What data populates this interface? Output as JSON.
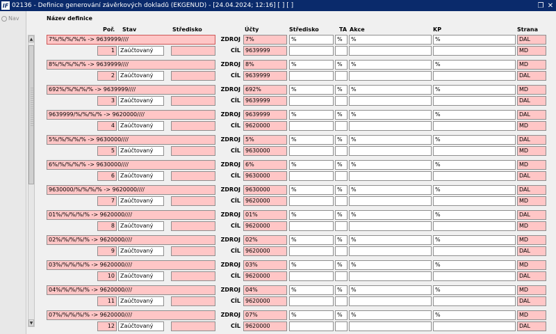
{
  "window": {
    "app_icon_text": "IF",
    "title": "02136 - Definice generování závěrkových dokladů (EKGENUD) - [24.04.2024; 12:16]  [ ]  [ ]",
    "restore_icon": "restore-icon"
  },
  "sidebar": {
    "nav_label": "Nav"
  },
  "form": {
    "section_label": "Název definice",
    "columns": {
      "por": "Poř.",
      "stav": "Stav",
      "stredisko": "Středisko",
      "ucty": "Účty",
      "stredisko2": "Středisko",
      "ta": "TA",
      "akce": "Akce",
      "kp": "KP",
      "strana": "Strana"
    },
    "labels": {
      "zdroj": "ZDROJ",
      "cil": "CÍL"
    },
    "rows": [
      {
        "name": "7%/%/%/%/% -> 9639999////",
        "por": "1",
        "stav": "Zaúčtovaný",
        "zdroj_ucty": "7%",
        "zdroj_stredisko": "%",
        "zdroj_ta": "%",
        "zdroj_akce": "%",
        "zdroj_kp": "%",
        "zdroj_strana": "DAL",
        "cil_ucty": "9639999",
        "cil_strana": "MD"
      },
      {
        "name": "8%/%/%/%/% -> 9639999////",
        "por": "2",
        "stav": "Zaúčtovaný",
        "zdroj_ucty": "8%",
        "zdroj_stredisko": "%",
        "zdroj_ta": "%",
        "zdroj_akce": "%",
        "zdroj_kp": "%",
        "zdroj_strana": "MD",
        "cil_ucty": "9639999",
        "cil_strana": "DAL"
      },
      {
        "name": "692%/%/%/%/% -> 9639999////",
        "por": "3",
        "stav": "Zaúčtovaný",
        "zdroj_ucty": "692%",
        "zdroj_stredisko": "%",
        "zdroj_ta": "%",
        "zdroj_akce": "%",
        "zdroj_kp": "%",
        "zdroj_strana": "MD",
        "cil_ucty": "9639999",
        "cil_strana": "DAL"
      },
      {
        "name": "9639999/%/%/%/% -> 9620000////",
        "por": "4",
        "stav": "Zaúčtovaný",
        "zdroj_ucty": "9639999",
        "zdroj_stredisko": "%",
        "zdroj_ta": "%",
        "zdroj_akce": "%",
        "zdroj_kp": "%",
        "zdroj_strana": "DAL",
        "cil_ucty": "9620000",
        "cil_strana": "MD"
      },
      {
        "name": "5%/%/%/%/% -> 9630000////",
        "por": "5",
        "stav": "Zaúčtovaný",
        "zdroj_ucty": "5%",
        "zdroj_stredisko": "%",
        "zdroj_ta": "%",
        "zdroj_akce": "%",
        "zdroj_kp": "%",
        "zdroj_strana": "DAL",
        "cil_ucty": "9630000",
        "cil_strana": "MD"
      },
      {
        "name": "6%/%/%/%/% -> 9630000////",
        "por": "6",
        "stav": "Zaúčtovaný",
        "zdroj_ucty": "6%",
        "zdroj_stredisko": "%",
        "zdroj_ta": "%",
        "zdroj_akce": "%",
        "zdroj_kp": "%",
        "zdroj_strana": "MD",
        "cil_ucty": "9630000",
        "cil_strana": "DAL"
      },
      {
        "name": "9630000/%/%/%/% -> 9620000////",
        "por": "7",
        "stav": "Zaúčtovaný",
        "zdroj_ucty": "9630000",
        "zdroj_stredisko": "%",
        "zdroj_ta": "%",
        "zdroj_akce": "%",
        "zdroj_kp": "%",
        "zdroj_strana": "DAL",
        "cil_ucty": "9620000",
        "cil_strana": "MD"
      },
      {
        "name": "01%/%/%/%/% -> 9620000////",
        "por": "8",
        "stav": "Zaúčtovaný",
        "zdroj_ucty": "01%",
        "zdroj_stredisko": "%",
        "zdroj_ta": "%",
        "zdroj_akce": "%",
        "zdroj_kp": "%",
        "zdroj_strana": "DAL",
        "cil_ucty": "9620000",
        "cil_strana": "MD"
      },
      {
        "name": "02%/%/%/%/% -> 9620000////",
        "por": "9",
        "stav": "Zaúčtovaný",
        "zdroj_ucty": "02%",
        "zdroj_stredisko": "%",
        "zdroj_ta": "%",
        "zdroj_akce": "%",
        "zdroj_kp": "%",
        "zdroj_strana": "MD",
        "cil_ucty": "9620000",
        "cil_strana": "DAL"
      },
      {
        "name": "03%/%/%/%/% -> 9620000////",
        "por": "10",
        "stav": "Zaúčtovaný",
        "zdroj_ucty": "03%",
        "zdroj_stredisko": "%",
        "zdroj_ta": "%",
        "zdroj_akce": "%",
        "zdroj_kp": "%",
        "zdroj_strana": "MD",
        "cil_ucty": "9620000",
        "cil_strana": "DAL"
      },
      {
        "name": "04%/%/%/%/% -> 9620000////",
        "por": "11",
        "stav": "Zaúčtovaný",
        "zdroj_ucty": "04%",
        "zdroj_stredisko": "%",
        "zdroj_ta": "%",
        "zdroj_akce": "%",
        "zdroj_kp": "%",
        "zdroj_strana": "MD",
        "cil_ucty": "9620000",
        "cil_strana": "DAL"
      },
      {
        "name": "07%/%/%/%/% -> 9620000////",
        "por": "12",
        "stav": "Zaúčtovaný",
        "zdroj_ucty": "07%",
        "zdroj_stredisko": "%",
        "zdroj_ta": "%",
        "zdroj_akce": "%",
        "zdroj_kp": "%",
        "zdroj_strana": "MD",
        "cil_ucty": "9620000",
        "cil_strana": "DAL"
      }
    ]
  },
  "colors": {
    "title_bar": "#0a2a6b",
    "required_field": "#ffc6c6"
  }
}
